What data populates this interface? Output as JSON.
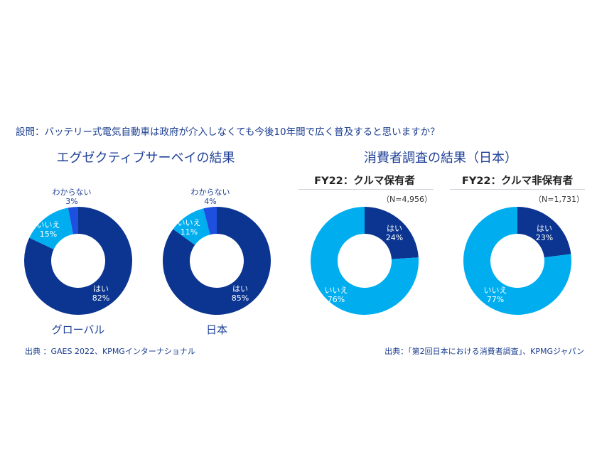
{
  "question": "設問：バッテリー式電気自動車は政府が介入しなくても今後10年間で広く普及すると思いますか？",
  "left_section_title": "エグゼクティブサーベイの結果",
  "right_section_title": "消費者調査の結果（日本）",
  "source_left": "出典 ：GAES 2022、KPMGインターナショナル",
  "source_right": "出典：「第2回日本における消費者調査」、KPMGジャパン",
  "colors": {
    "yes": "#0b3591",
    "no": "#00aeef",
    "unknown": "#1e50e0",
    "text": "#1f4096"
  },
  "chart_data": [
    {
      "type": "pie",
      "donut": true,
      "caption": "グローバル",
      "categories": [
        "はい",
        "いいえ",
        "わからない"
      ],
      "values": [
        82,
        15,
        3
      ],
      "labels": [
        "82%",
        "15%",
        "3%"
      ]
    },
    {
      "type": "pie",
      "donut": true,
      "caption": "日本",
      "categories": [
        "はい",
        "いいえ",
        "わからない"
      ],
      "values": [
        85,
        11,
        4
      ],
      "labels": [
        "85%",
        "11%",
        "4%"
      ]
    },
    {
      "type": "pie",
      "donut": true,
      "title": "FY22：クルマ保有者",
      "n": "（N=4,956）",
      "categories": [
        "はい",
        "いいえ"
      ],
      "values": [
        24,
        76
      ],
      "labels": [
        "24%",
        "76%"
      ]
    },
    {
      "type": "pie",
      "donut": true,
      "title": "FY22：クルマ非保有者",
      "n": "（N=1,731）",
      "categories": [
        "はい",
        "いいえ"
      ],
      "values": [
        23,
        77
      ],
      "labels": [
        "23%",
        "77%"
      ]
    }
  ]
}
